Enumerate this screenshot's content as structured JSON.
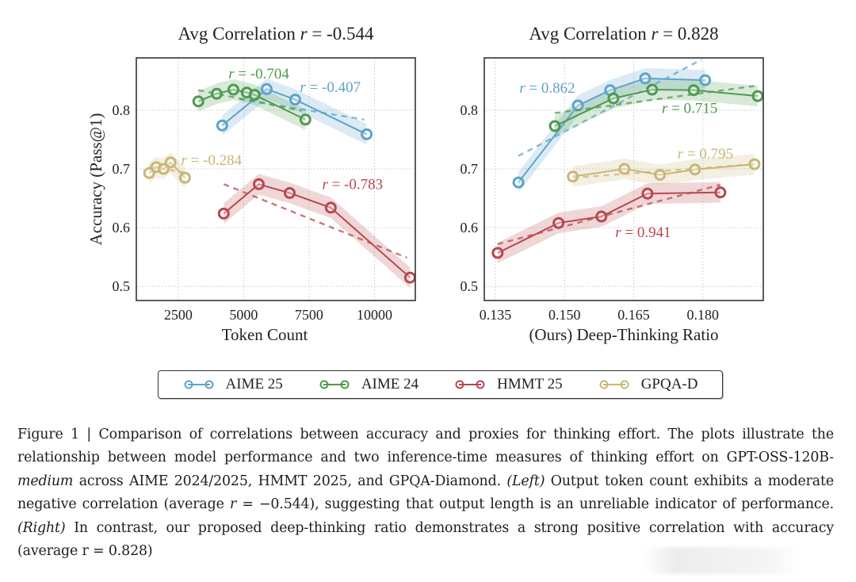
{
  "figure": {
    "legend": [
      {
        "label": "AIME 25",
        "color": "#5fa3c9"
      },
      {
        "label": "AIME 24",
        "color": "#4e9a4f"
      },
      {
        "label": "HMMT 25",
        "color": "#b8474f"
      },
      {
        "label": "GPQA-D",
        "color": "#c8b777"
      }
    ],
    "caption": {
      "label": "Figure 1 | ",
      "part1": "Comparison of correlations between accuracy and proxies for thinking effort. The plots illustrate the relationship between model performance and two inference-time measures of thinking effort on GPT-OSS-120B-",
      "model_variant": "medium",
      "part2": " across AIME 2024/2025, HMMT 2025, and GPQA-Diamond. ",
      "left_tag": "(Left)",
      "part3": " Output token count exhibits a moderate negative correlation (average ",
      "r_symbol": "r",
      "part4": " = −0.544), suggesting that output length is an unreliable indicator of performance. ",
      "right_tag": "(Right)",
      "part5": " In contrast, our proposed deep-thinking ratio demonstrates a strong positive correlation with accuracy (average r = 0.828)"
    }
  },
  "chart_data": [
    {
      "type": "line",
      "title": "Avg Correlation r = -0.544",
      "title_prefix": "Avg Correlation ",
      "title_r": "r",
      "title_value": " = -0.544",
      "xlabel": "Token Count",
      "ylabel": "Accuracy (Pass@1)",
      "xlim": [
        900,
        11560
      ],
      "ylim": [
        0.476,
        0.889
      ],
      "xticks": [
        2500,
        5000,
        7500,
        10000
      ],
      "xtick_labels": [
        "2500",
        "5000",
        "7500",
        "10000"
      ],
      "yticks": [
        0.5,
        0.6,
        0.7,
        0.8
      ],
      "ytick_labels": [
        "0.5",
        "0.6",
        "0.7",
        "0.8"
      ],
      "grid": true,
      "series": [
        {
          "name": "AIME 25",
          "color": "#5fa3c9",
          "r": "-0.407",
          "x": [
            4180,
            5880,
            6970,
            9700
          ],
          "y": [
            0.774,
            0.836,
            0.818,
            0.759
          ],
          "trend": [
            [
              4850,
              0.819
            ],
            [
              9610,
              0.784
            ]
          ],
          "annotation": {
            "x": 7150,
            "y": 0.839
          }
        },
        {
          "name": "AIME 24",
          "color": "#4e9a4f",
          "r": "-0.704",
          "x": [
            3270,
            3970,
            4610,
            5120,
            5420,
            7360
          ],
          "y": [
            0.815,
            0.828,
            0.835,
            0.83,
            0.826,
            0.784
          ],
          "trend": [
            [
              3270,
              0.834
            ],
            [
              7210,
              0.799
            ]
          ],
          "annotation": {
            "x": 4420,
            "y": 0.862
          }
        },
        {
          "name": "HMMT 25",
          "color": "#b8474f",
          "r": "-0.783",
          "x": [
            4240,
            5580,
            6760,
            8330,
            11360
          ],
          "y": [
            0.624,
            0.674,
            0.659,
            0.634,
            0.515
          ],
          "trend": [
            [
              4240,
              0.674
            ],
            [
              11240,
              0.549
            ]
          ],
          "annotation": {
            "x": 8000,
            "y": 0.674
          }
        },
        {
          "name": "GPQA-D",
          "color": "#c8b777",
          "r": "-0.284",
          "x": [
            1390,
            1660,
            1940,
            2210,
            2760
          ],
          "y": [
            0.693,
            0.703,
            0.7,
            0.711,
            0.685
          ],
          "trend": [
            [
              1390,
              0.704
            ],
            [
              2760,
              0.694
            ]
          ],
          "annotation": {
            "x": 2610,
            "y": 0.715
          }
        }
      ]
    },
    {
      "type": "line",
      "title": "Avg Correlation r = 0.828",
      "title_prefix": "Avg Correlation ",
      "title_r": "r",
      "title_value": " = 0.828",
      "xlabel": "(Ours) Deep-Thinking Ratio",
      "ylabel": "",
      "xlim": [
        0.1326,
        0.1931
      ],
      "ylim": [
        0.476,
        0.889
      ],
      "xticks": [
        0.135,
        0.15,
        0.165,
        0.18
      ],
      "xtick_labels": [
        "0.135",
        "0.150",
        "0.165",
        "0.180"
      ],
      "yticks": [
        0.5,
        0.6,
        0.7,
        0.8
      ],
      "ytick_labels": [
        "0.5",
        "0.6",
        "0.7",
        "0.8"
      ],
      "grid": true,
      "series": [
        {
          "name": "AIME 25",
          "color": "#5fa3c9",
          "r": "0.862",
          "x": [
            0.14,
            0.1529,
            0.1599,
            0.1675,
            0.1805
          ],
          "y": [
            0.677,
            0.808,
            0.834,
            0.854,
            0.851
          ],
          "trend": [
            [
              0.14,
              0.722
            ],
            [
              0.1797,
              0.886
            ]
          ],
          "annotation": {
            "x": 0.1402,
            "y": 0.838
          }
        },
        {
          "name": "AIME 24",
          "color": "#4e9a4f",
          "r": "0.715",
          "x": [
            0.1479,
            0.1606,
            0.169,
            0.178,
            0.1919
          ],
          "y": [
            0.773,
            0.82,
            0.835,
            0.834,
            0.824
          ],
          "trend": [
            [
              0.1479,
              0.795
            ],
            [
              0.192,
              0.842
            ]
          ],
          "annotation": {
            "x": 0.1711,
            "y": 0.803
          }
        },
        {
          "name": "HMMT 25",
          "color": "#b8474f",
          "r": "0.941",
          "x": [
            0.1355,
            0.1487,
            0.158,
            0.168,
            0.1838
          ],
          "y": [
            0.557,
            0.608,
            0.619,
            0.658,
            0.66
          ],
          "trend": [
            [
              0.1355,
              0.572
            ],
            [
              0.1838,
              0.673
            ]
          ],
          "annotation": {
            "x": 0.161,
            "y": 0.592
          }
        },
        {
          "name": "GPQA-D",
          "color": "#c8b777",
          "r": "0.795",
          "x": [
            0.1518,
            0.163,
            0.1707,
            0.1783,
            0.1912
          ],
          "y": [
            0.687,
            0.7,
            0.69,
            0.699,
            0.708
          ],
          "trend": [
            [
              0.1518,
              0.685
            ],
            [
              0.1912,
              0.708
            ]
          ],
          "annotation": {
            "x": 0.1745,
            "y": 0.726
          }
        }
      ]
    }
  ]
}
